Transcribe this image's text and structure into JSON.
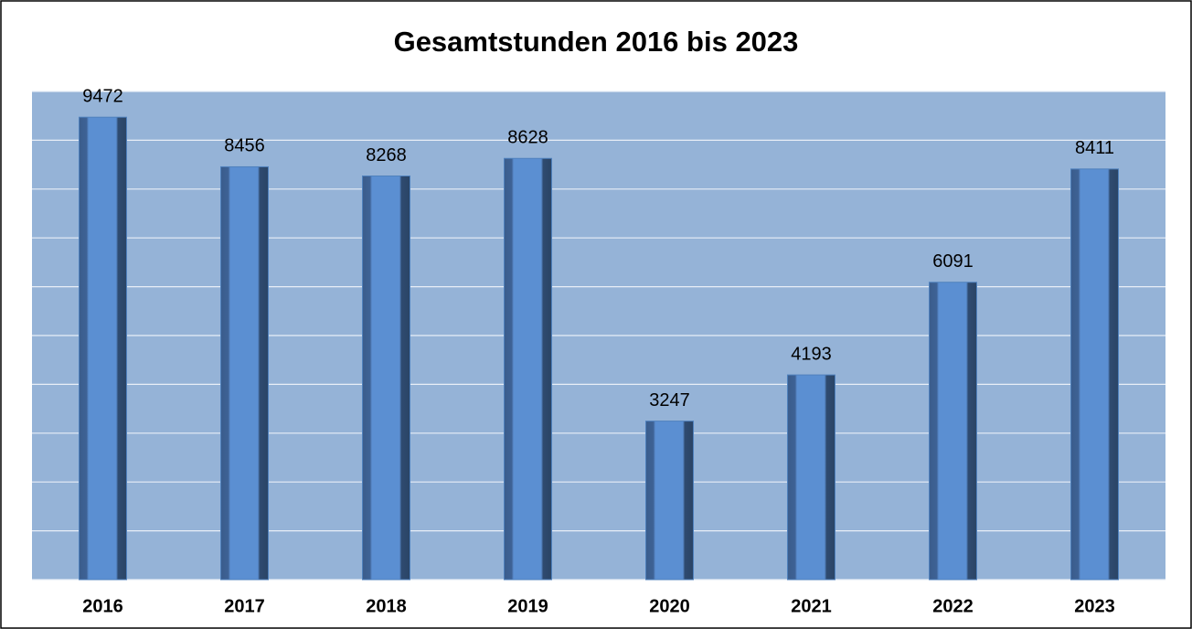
{
  "chart_data": {
    "type": "bar",
    "title": "Gesamtstunden 2016 bis 2023",
    "categories": [
      "2016",
      "2017",
      "2018",
      "2019",
      "2020",
      "2021",
      "2022",
      "2023"
    ],
    "values": [
      9472,
      8456,
      8268,
      8628,
      3247,
      4193,
      6091,
      8411
    ],
    "color": "#4f81bd",
    "ylim": [
      0,
      10000
    ],
    "yticks": [
      0,
      1000,
      2000,
      3000,
      4000,
      5000,
      6000,
      7000,
      8000,
      9000,
      10000
    ],
    "grid": true
  }
}
